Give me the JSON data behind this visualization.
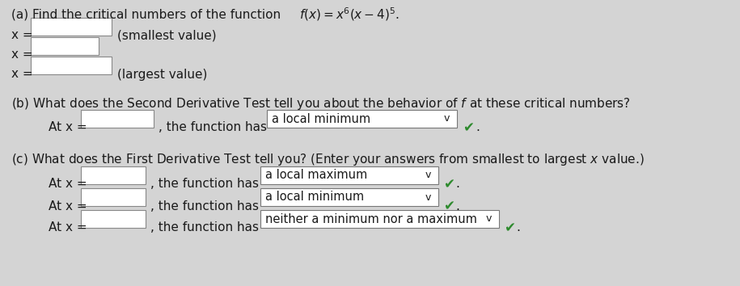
{
  "bg_color": "#d4d4d4",
  "text_color": "#1a1a1a",
  "box_color": "#ffffff",
  "box_border": "#888888",
  "green_check": "#2d8a2d",
  "dropdown_border": "#777777",
  "title_a": "(a) Find the critical numbers of the function ",
  "func_math": "$f(x) = x^6(x-4)^5$.",
  "label_smallest": "(smallest value)",
  "label_largest": "(largest value)",
  "title_b": "(b) What does the Second Derivative Test tell you about the behavior of $f$ at these critical numbers?",
  "dropdown_b": "a local minimum",
  "title_c": "(c) What does the First Derivative Test tell you? (Enter your answers from smallest to largest $x$ value.)",
  "dropdown_c1": "a local maximum",
  "dropdown_c2": "a local minimum",
  "dropdown_c3": "neither a minimum nor a maximum",
  "font_size": 11.0
}
